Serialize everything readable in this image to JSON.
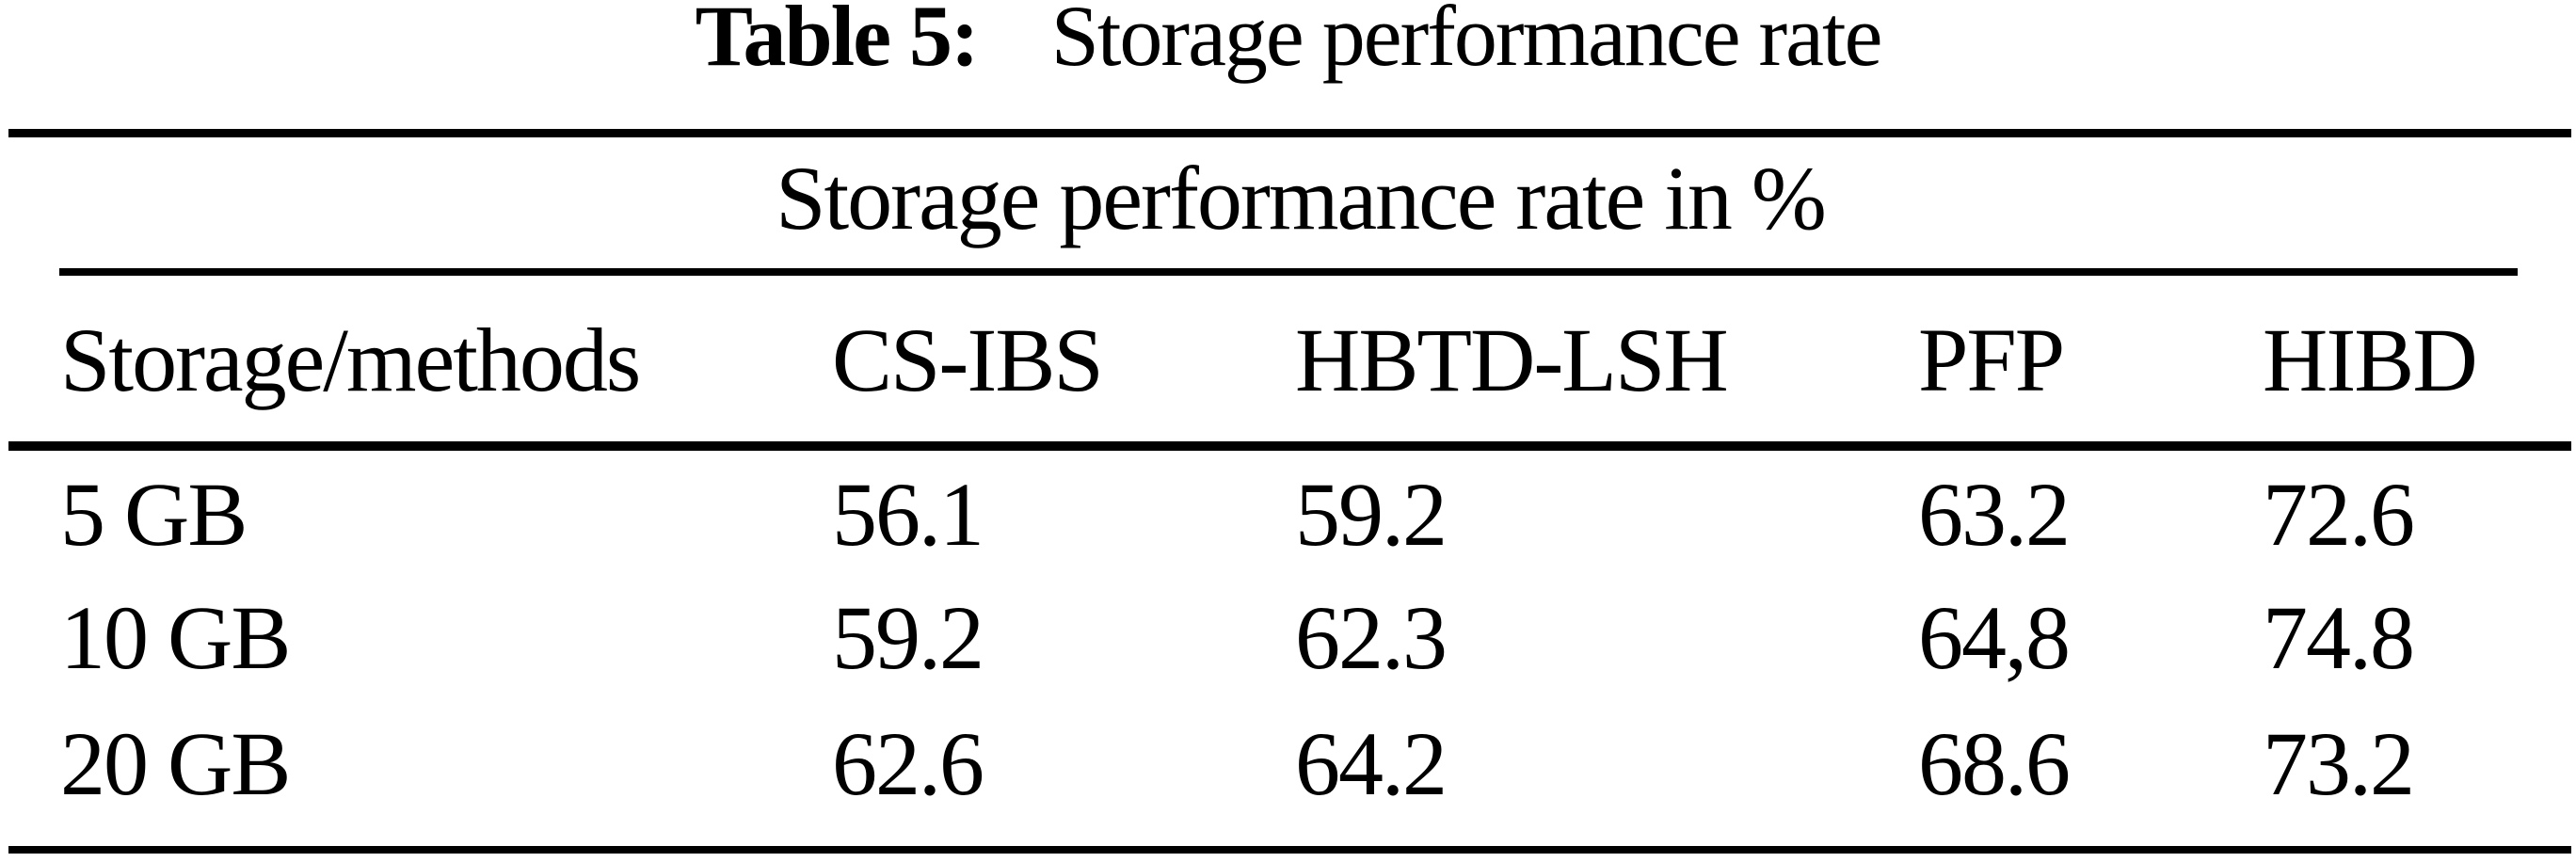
{
  "title": {
    "label": "Table 5:",
    "caption": "Storage performance rate"
  },
  "table": {
    "subheader": "Storage performance rate in %",
    "columns": [
      "Storage/methods",
      "CS-IBS",
      "HBTD-LSH",
      "PFP",
      "HIBD"
    ],
    "rows": [
      {
        "label": "5 GB",
        "values": [
          "56.1",
          "59.2",
          "63.2",
          "72.6"
        ]
      },
      {
        "label": "10 GB",
        "values": [
          "59.2",
          "62.3",
          "64,8",
          "74.8"
        ]
      },
      {
        "label": "20 GB",
        "values": [
          "62.6",
          "64.2",
          "68.6",
          "73.2"
        ]
      }
    ]
  },
  "chart_data": {
    "type": "table",
    "title": "Table 5: Storage performance rate",
    "subtitle": "Storage performance rate in %",
    "row_header": "Storage/methods",
    "categories": [
      "5 GB",
      "10 GB",
      "20 GB"
    ],
    "series": [
      {
        "name": "CS-IBS",
        "values": [
          56.1,
          59.2,
          62.6
        ]
      },
      {
        "name": "HBTD-LSH",
        "values": [
          59.2,
          62.3,
          64.2
        ]
      },
      {
        "name": "PFP",
        "values": [
          63.2,
          64.8,
          68.6
        ]
      },
      {
        "name": "HIBD",
        "values": [
          72.6,
          74.8,
          73.2
        ]
      }
    ],
    "units": "%",
    "note_as_printed": "PFP value for 10 GB is printed as 64,8 with a comma"
  },
  "colors": {
    "ink": "#000000",
    "paper": "#ffffff"
  }
}
